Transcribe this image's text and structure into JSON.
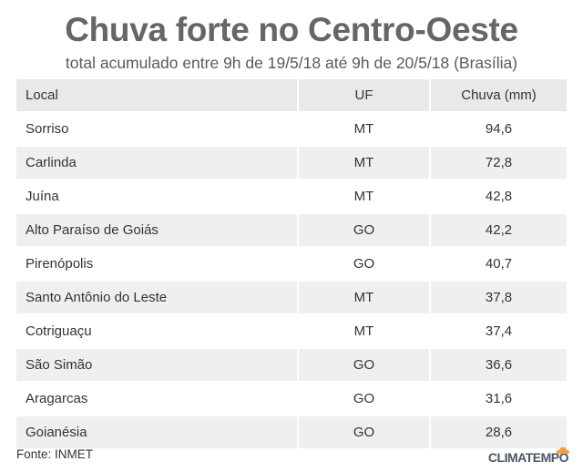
{
  "title": "Chuva forte no Centro-Oeste",
  "subtitle": "total acumulado entre 9h de 19/5/18 até 9h de 20/5/18 (Brasília)",
  "source": "Fonte: INMET",
  "logo_text": "CLIMATEMPO",
  "colors": {
    "title": "#666666",
    "header_bg": "#e9e9e9",
    "shaded_row_bg": "#efefef",
    "text": "#333333"
  },
  "chart_data": {
    "type": "table",
    "title": "Chuva forte no Centro-Oeste",
    "subtitle": "total acumulado entre 9h de 19/5/18 até 9h de 20/5/18 (Brasília)",
    "columns": [
      "Local",
      "UF",
      "Chuva (mm)"
    ],
    "rows": [
      [
        "Sorriso",
        "MT",
        "94,6"
      ],
      [
        "Carlinda",
        "MT",
        "72,8"
      ],
      [
        "Juína",
        "MT",
        "42,8"
      ],
      [
        "Alto Paraíso de Goiás",
        "GO",
        "42,2"
      ],
      [
        "Pirenópolis",
        "GO",
        "40,7"
      ],
      [
        "Santo Antônio do Leste",
        "MT",
        "37,8"
      ],
      [
        "Cotriguaçu",
        "MT",
        "37,4"
      ],
      [
        "São Simão",
        "GO",
        "36,6"
      ],
      [
        "Aragarcas",
        "GO",
        "31,6"
      ],
      [
        "Goianésia",
        "GO",
        "28,6"
      ]
    ]
  }
}
